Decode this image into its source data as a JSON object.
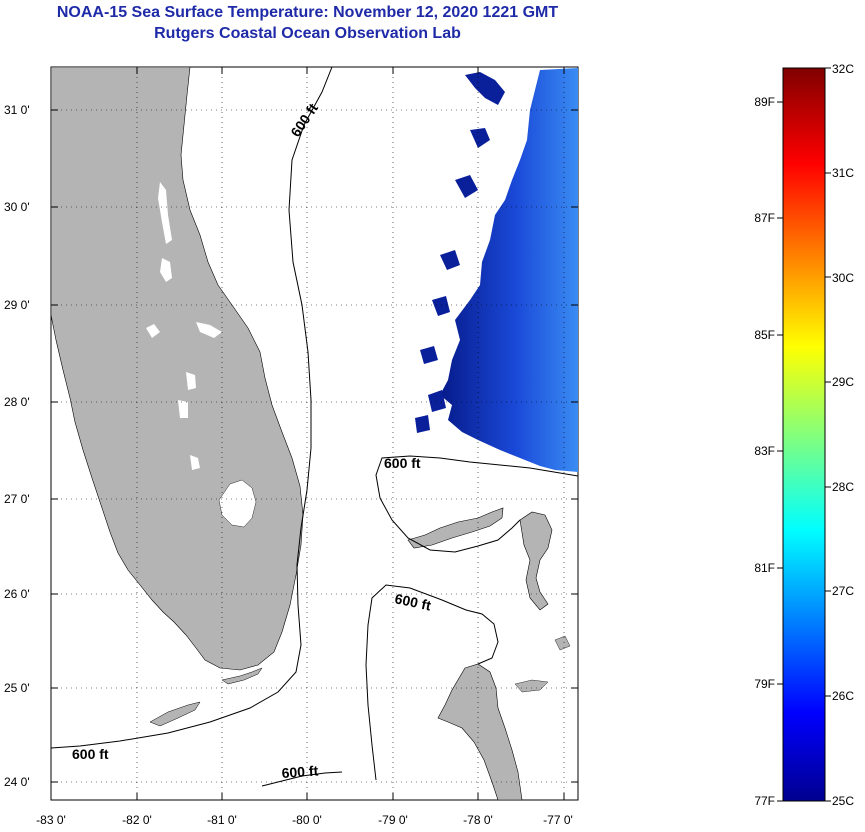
{
  "title": {
    "line1": "NOAA-15 Sea Surface Temperature:  November 12, 2020 1221 GMT",
    "line2": "Rutgers Coastal Ocean Observation Lab"
  },
  "map": {
    "lat_labels": [
      "31 0'",
      "30 0'",
      "29 0'",
      "28 0'",
      "27 0'",
      "26 0'",
      "25 0'",
      "24 0'"
    ],
    "lon_labels": [
      "-83 0'",
      "-82 0'",
      "-81 0'",
      "-80 0'",
      "-79 0'",
      "-78 0'",
      "-77 0'"
    ],
    "contour_labels": [
      "600 ft",
      "600 ft",
      "600 ft",
      "600 ft",
      "600 ft"
    ],
    "colors": {
      "land": "#b4b4b4",
      "ocean": "#ffffff",
      "sst_cold": "#0a1a8c",
      "sst_mid": "#2f7df0"
    }
  },
  "colorbar": {
    "range_c": [
      25,
      32
    ],
    "range_f": [
      77,
      89
    ],
    "celsius_labels": [
      "32C",
      "31C",
      "30C",
      "29C",
      "28C",
      "27C",
      "26C",
      "25C"
    ],
    "fahrenheit_labels": [
      "89F",
      "87F",
      "85F",
      "83F",
      "81F",
      "79F",
      "77F"
    ]
  }
}
